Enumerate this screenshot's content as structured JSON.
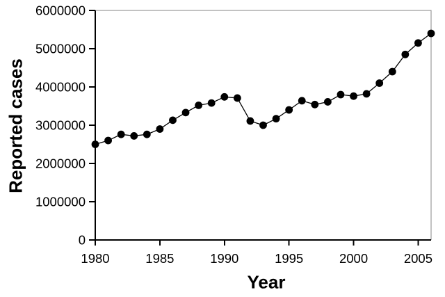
{
  "chart_data": {
    "type": "line",
    "title": "",
    "xlabel": "Year",
    "ylabel": "Reported cases",
    "series_name": "Reported cases",
    "x": [
      1980,
      1981,
      1982,
      1983,
      1984,
      1985,
      1986,
      1987,
      1988,
      1989,
      1990,
      1991,
      1992,
      1993,
      1994,
      1995,
      1996,
      1997,
      1998,
      1999,
      2000,
      2001,
      2002,
      2003,
      2004,
      2005,
      2006
    ],
    "values": [
      2500000,
      2600000,
      2760000,
      2720000,
      2760000,
      2900000,
      3130000,
      3330000,
      3520000,
      3580000,
      3740000,
      3710000,
      3110000,
      3000000,
      3170000,
      3400000,
      3640000,
      3540000,
      3610000,
      3800000,
      3760000,
      3820000,
      4100000,
      4400000,
      4850000,
      5150000,
      5400000
    ],
    "xlim": [
      1980,
      2006
    ],
    "ylim": [
      0,
      6000000
    ],
    "xticks": [
      1980,
      1985,
      1990,
      1995,
      2000,
      2005
    ],
    "ytick_step": 1000000,
    "grid": false,
    "legend": "none",
    "marker": "filled-circle",
    "colors": {
      "line": "#000000",
      "marker": "#000000",
      "axis": "#000000",
      "text": "#000000",
      "plot_border": "#848484",
      "background": "#ffffff"
    }
  }
}
